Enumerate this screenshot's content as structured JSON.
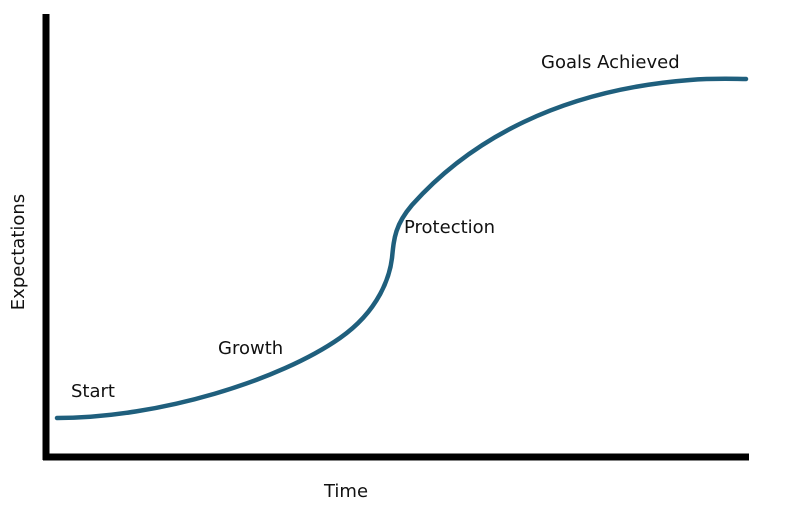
{
  "diagram": {
    "x_axis_label": "Time",
    "y_axis_label": "Expectations",
    "stages": [
      {
        "id": "start",
        "label": "Start"
      },
      {
        "id": "growth",
        "label": "Growth"
      },
      {
        "id": "protection",
        "label": "Protection"
      },
      {
        "id": "goals",
        "label": "Goals Achieved"
      }
    ],
    "colors": {
      "curve": "#1f5f7d",
      "axes": "#000000",
      "text": "#111111"
    }
  }
}
